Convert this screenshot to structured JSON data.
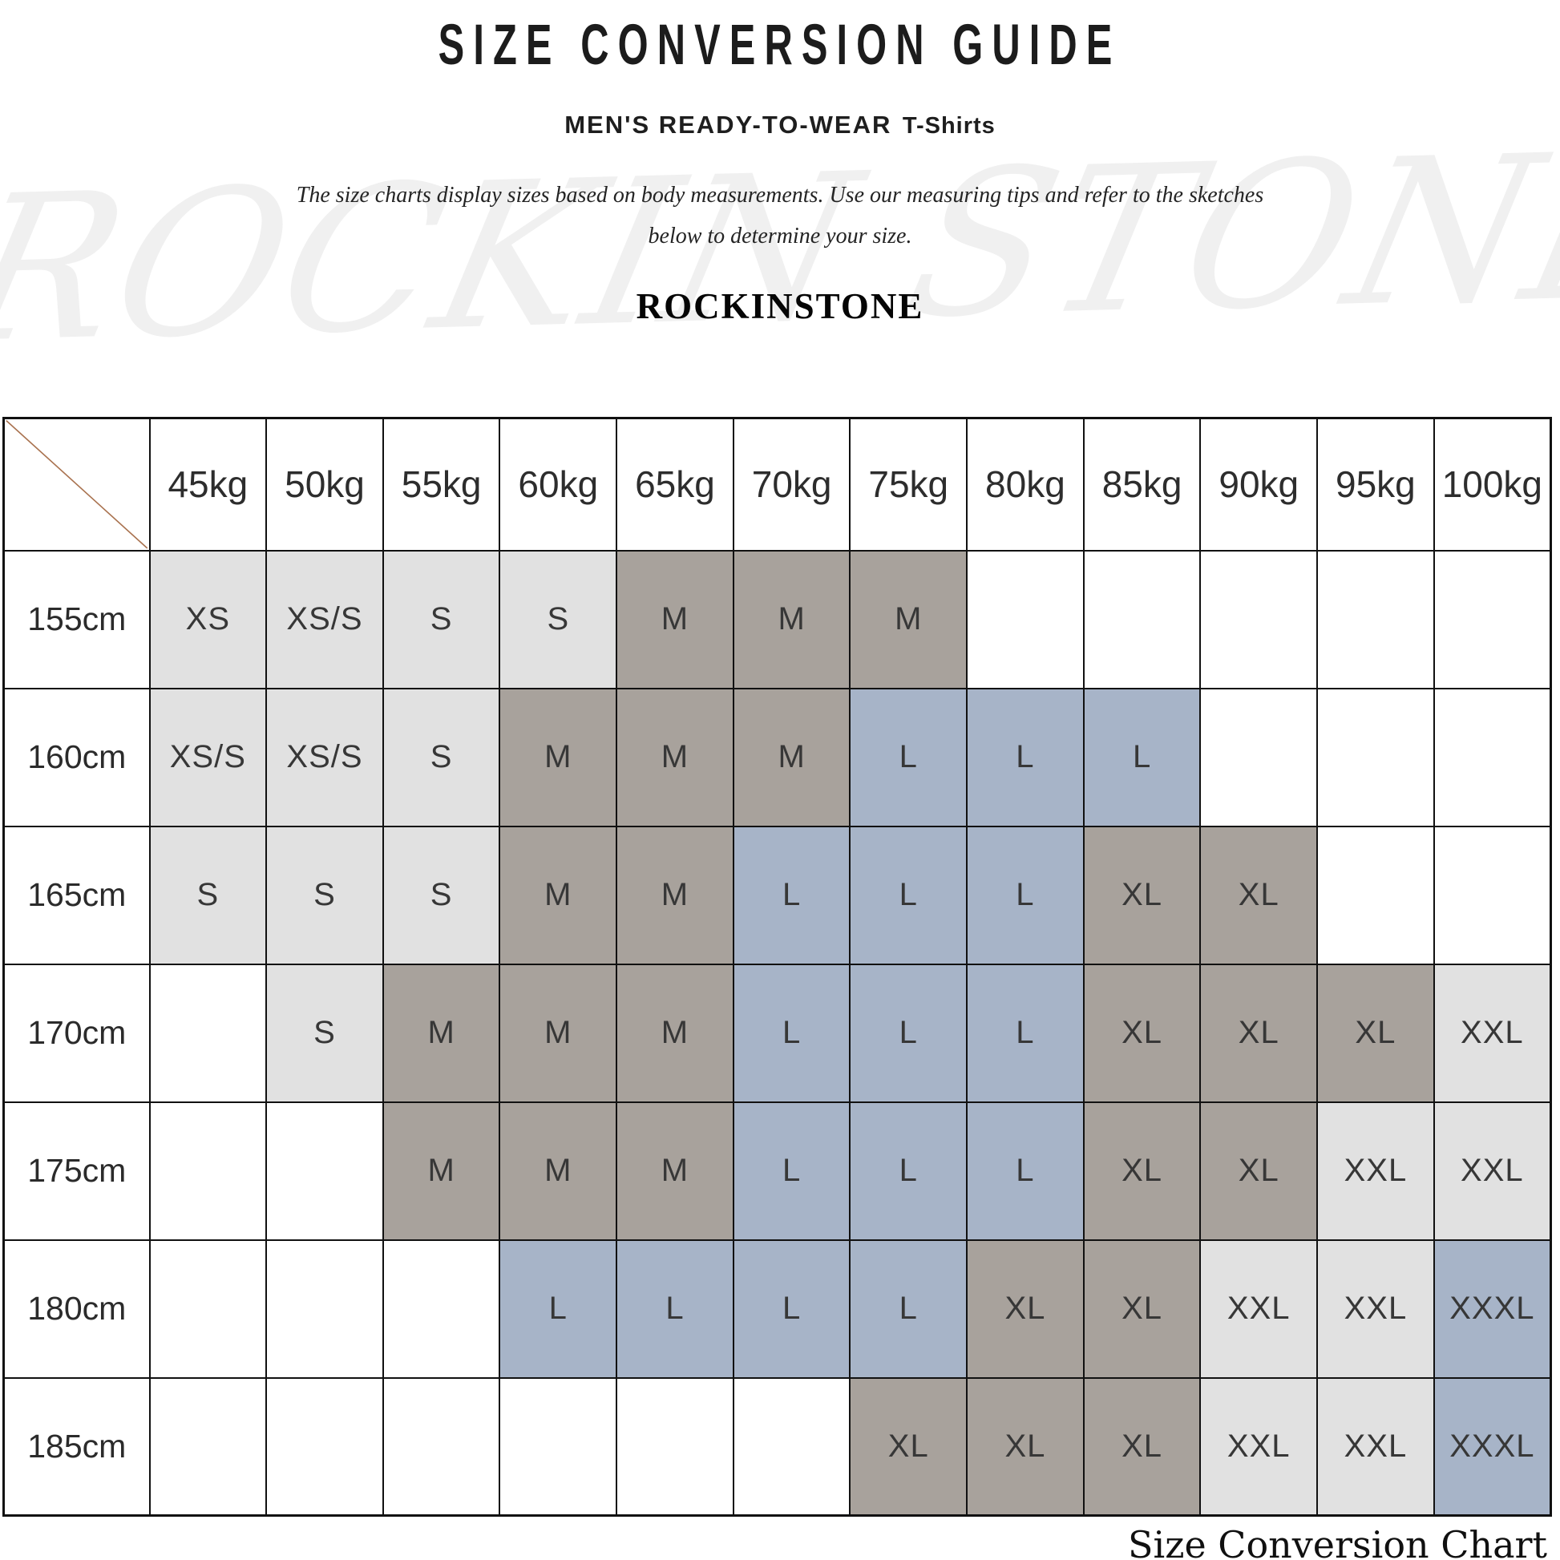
{
  "header": {
    "title": "SIZE CONVERSION GUIDE",
    "subtitle_category": "MEN'S READY-TO-WEAR",
    "subtitle_product": "T-Shirts",
    "description_line1": "The size charts display sizes based on body measurements. Use our measuring tips and refer to the sketches",
    "description_line2": "below to determine your size.",
    "brand": "ROCKINSTONE",
    "watermark": "ROCKIN STONE"
  },
  "footer": {
    "caption": "Size Conversion Chart"
  },
  "chart_data": {
    "type": "table",
    "corner_label": "",
    "columns": [
      "45kg",
      "50kg",
      "55kg",
      "60kg",
      "65kg",
      "70kg",
      "75kg",
      "80kg",
      "85kg",
      "90kg",
      "95kg",
      "100kg"
    ],
    "rows": [
      {
        "height": "155cm",
        "cells": [
          "XS",
          "XS/S",
          "S",
          "S",
          "M",
          "M",
          "M",
          "",
          "",
          "",
          "",
          ""
        ]
      },
      {
        "height": "160cm",
        "cells": [
          "XS/S",
          "XS/S",
          "S",
          "M",
          "M",
          "M",
          "L",
          "L",
          "L",
          "",
          "",
          ""
        ]
      },
      {
        "height": "165cm",
        "cells": [
          "S",
          "S",
          "S",
          "M",
          "M",
          "L",
          "L",
          "L",
          "XL",
          "XL",
          "",
          ""
        ]
      },
      {
        "height": "170cm",
        "cells": [
          "",
          "S",
          "M",
          "M",
          "M",
          "L",
          "L",
          "L",
          "XL",
          "XL",
          "XL",
          "XXL"
        ]
      },
      {
        "height": "175cm",
        "cells": [
          "",
          "",
          "M",
          "M",
          "M",
          "L",
          "L",
          "L",
          "XL",
          "XL",
          "XXL",
          "XXL"
        ]
      },
      {
        "height": "180cm",
        "cells": [
          "",
          "",
          "",
          "L",
          "L",
          "L",
          "L",
          "XL",
          "XL",
          "XXL",
          "XXL",
          "XXXL"
        ]
      },
      {
        "height": "185cm",
        "cells": [
          "",
          "",
          "",
          "",
          "",
          "",
          "XL",
          "XL",
          "XL",
          "XXL",
          "XXL",
          "XXXL"
        ]
      }
    ]
  },
  "colors": {
    "light_cell": "#e1e1e1",
    "taupe_cell": "#a8a29c",
    "blue_cell": "#a7b4c8",
    "diagonal_line": "#a9724f",
    "border": "#111111"
  },
  "size_color_map": {
    "XS": "light_cell",
    "XS/S": "light_cell",
    "S": "light_cell",
    "M": "taupe_cell",
    "L": "blue_cell",
    "XL": "taupe_cell",
    "XXL": "light_cell",
    "XXXL": "blue_cell"
  }
}
